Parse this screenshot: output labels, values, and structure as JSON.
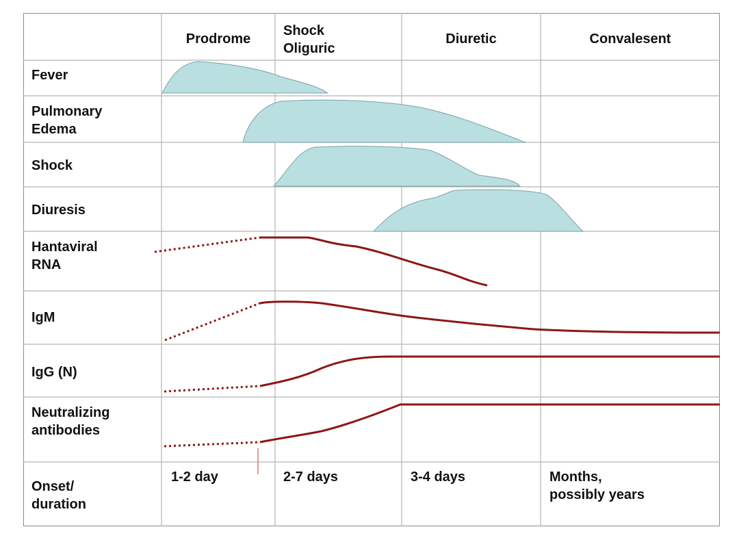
{
  "phases": [
    "Prodrome",
    "Shock\nOliguric",
    "Diuretic",
    "Convalesent"
  ],
  "rows": [
    "Fever",
    "Pulmonary\nEdema",
    "Shock",
    "Diuresis",
    "Hantaviral\nRNA",
    "IgM",
    "IgG (N)",
    "Neutralizing\nantibodies",
    "Onset/\nduration"
  ],
  "durations": [
    "1-2 day",
    "2-7 days",
    "3-4 days",
    "Months,\npossibly years"
  ],
  "colors": {
    "shape_fill": "#b9dfe0",
    "shape_stroke": "#7aa3a8",
    "curve": "#8e1515",
    "onset_arrow": "#e07a5f",
    "grid": "#b5b5b5"
  }
}
